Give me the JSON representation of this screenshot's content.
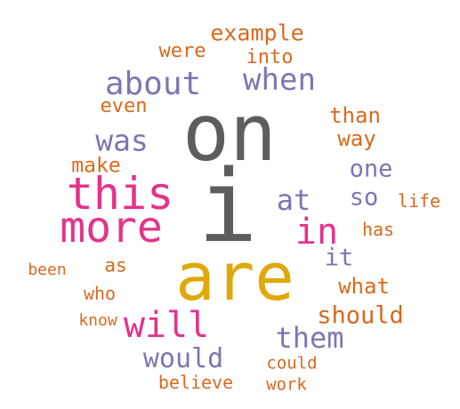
{
  "colors": {
    "orange": "#d9691e",
    "purple": "#7d76b2",
    "gray": "#5d5d5d",
    "magenta": "#e3338a",
    "gold": "#e0a80c"
  },
  "words": [
    {
      "text": "on",
      "weight": 10,
      "color": "gray"
    },
    {
      "text": "are",
      "weight": 9,
      "color": "gold"
    },
    {
      "text": "i",
      "weight": 9,
      "color": "gray"
    },
    {
      "text": "this",
      "weight": 7,
      "color": "magenta"
    },
    {
      "text": "more",
      "weight": 7,
      "color": "magenta"
    },
    {
      "text": "will",
      "weight": 6,
      "color": "magenta"
    },
    {
      "text": "in",
      "weight": 6,
      "color": "magenta"
    },
    {
      "text": "about",
      "weight": 5,
      "color": "purple"
    },
    {
      "text": "when",
      "weight": 5,
      "color": "purple"
    },
    {
      "text": "was",
      "weight": 5,
      "color": "purple"
    },
    {
      "text": "at",
      "weight": 5,
      "color": "purple"
    },
    {
      "text": "them",
      "weight": 5,
      "color": "purple"
    },
    {
      "text": "would",
      "weight": 5,
      "color": "purple"
    },
    {
      "text": "one",
      "weight": 4,
      "color": "purple"
    },
    {
      "text": "so",
      "weight": 4,
      "color": "purple"
    },
    {
      "text": "it",
      "weight": 4,
      "color": "purple"
    },
    {
      "text": "example",
      "weight": 3,
      "color": "orange"
    },
    {
      "text": "were",
      "weight": 3,
      "color": "orange"
    },
    {
      "text": "into",
      "weight": 3,
      "color": "orange"
    },
    {
      "text": "even",
      "weight": 3,
      "color": "orange"
    },
    {
      "text": "than",
      "weight": 3,
      "color": "orange"
    },
    {
      "text": "way",
      "weight": 3,
      "color": "orange"
    },
    {
      "text": "make",
      "weight": 3,
      "color": "orange"
    },
    {
      "text": "life",
      "weight": 2,
      "color": "orange"
    },
    {
      "text": "has",
      "weight": 2,
      "color": "orange"
    },
    {
      "text": "as",
      "weight": 3,
      "color": "orange"
    },
    {
      "text": "what",
      "weight": 3,
      "color": "orange"
    },
    {
      "text": "been",
      "weight": 2,
      "color": "orange"
    },
    {
      "text": "who",
      "weight": 2,
      "color": "orange"
    },
    {
      "text": "should",
      "weight": 3,
      "color": "orange"
    },
    {
      "text": "know",
      "weight": 2,
      "color": "orange"
    },
    {
      "text": "could",
      "weight": 2,
      "color": "orange"
    },
    {
      "text": "believe",
      "weight": 2,
      "color": "orange"
    },
    {
      "text": "work",
      "weight": 2,
      "color": "orange"
    }
  ]
}
